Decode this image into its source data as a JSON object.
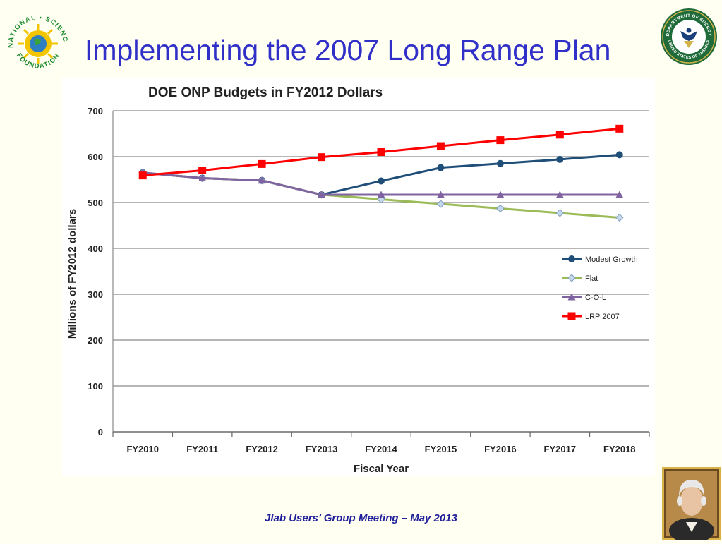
{
  "slide": {
    "title": "Implementing the 2007 Long Range Plan",
    "footer": "Jlab Users’ Group Meeting – May 2013",
    "nsf_logo": {
      "arc_text": "NATIONAL • SCIENCE",
      "bottom_text": "FOUNDATION",
      "icon": "nsf-logo"
    },
    "doe_seal": {
      "top_text": "DEPARTMENT OF ENERGY",
      "bottom_text": "UNITED STATES OF AMERICA",
      "icon": "doe-seal"
    },
    "portrait": {
      "icon": "portrait-george-washington"
    }
  },
  "colors": {
    "title": "#3030c8",
    "footer": "#20209a",
    "modest_growth": "#1f4e79",
    "flat": "#9bbb59",
    "col": "#8064a2",
    "lrp": "#ff0000"
  },
  "chart_data": {
    "type": "line",
    "title": "DOE ONP Budgets in FY2012 Dollars",
    "xlabel": "Fiscal Year",
    "ylabel": "Millions of FY2012 dollars",
    "categories": [
      "FY2010",
      "FY2011",
      "FY2012",
      "FY2013",
      "FY2014",
      "FY2015",
      "FY2016",
      "FY2017",
      "FY2018"
    ],
    "ylim": [
      0,
      700
    ],
    "yticks": [
      0,
      100,
      200,
      300,
      400,
      500,
      600,
      700
    ],
    "grid": true,
    "legend_position": "right",
    "series": [
      {
        "name": "Modest Growth",
        "marker": "circle",
        "values": [
          565,
          553,
          548,
          517,
          547,
          576,
          585,
          594,
          604
        ]
      },
      {
        "name": "Flat",
        "marker": "diamond",
        "values": [
          565,
          553,
          548,
          517,
          507,
          497,
          487,
          477,
          467
        ]
      },
      {
        "name": "C-O-L",
        "marker": "triangle",
        "values": [
          565,
          553,
          548,
          517,
          517,
          517,
          517,
          517,
          517
        ]
      },
      {
        "name": "LRP 2007",
        "marker": "square",
        "values": [
          559,
          570,
          584,
          599,
          610,
          623,
          636,
          648,
          661
        ]
      }
    ]
  }
}
